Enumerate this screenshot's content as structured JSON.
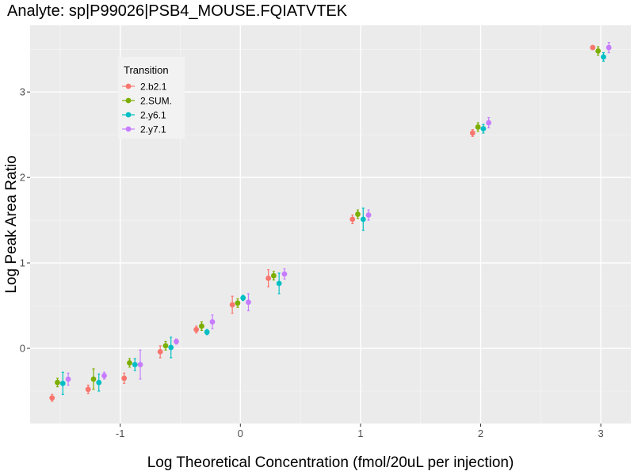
{
  "chart_data": {
    "type": "scatter",
    "title": "Analyte: sp|P99026|PSB4_MOUSE.FQIATVTEK",
    "xlabel": "Log Theoretical Concentration (fmol/20uL per injection)",
    "ylabel": "Log Peak Area Ratio",
    "xlim": [
      -1.75,
      3.25
    ],
    "ylim": [
      -0.88,
      3.78
    ],
    "x_ticks": [
      -1,
      0,
      1,
      2,
      3
    ],
    "x_tick_labels": [
      "-1",
      "0",
      "1",
      "2",
      "3"
    ],
    "y_ticks": [
      0,
      1,
      2,
      3
    ],
    "y_tick_labels": [
      "0",
      "1",
      "2",
      "3"
    ],
    "grid": true,
    "legend_title": "Transition",
    "legend_position": "top-left",
    "x": [
      -1.5,
      -1.2,
      -0.9,
      -0.6,
      -0.3,
      0,
      0.3,
      1,
      2,
      3
    ],
    "series": [
      {
        "name": "2.b2.1",
        "color": "#F8766D",
        "values": [
          -0.58,
          -0.48,
          -0.35,
          -0.04,
          0.22,
          0.51,
          0.82,
          1.51,
          2.52,
          3.52
        ],
        "error": [
          0.04,
          0.05,
          0.06,
          0.07,
          0.04,
          0.1,
          0.1,
          0.05,
          0.04,
          0.02
        ]
      },
      {
        "name": "2.SUM.",
        "color": "#7CAE00",
        "values": [
          -0.4,
          -0.36,
          -0.17,
          0.03,
          0.26,
          0.53,
          0.85,
          1.57,
          2.59,
          3.48
        ],
        "error": [
          0.05,
          0.12,
          0.05,
          0.05,
          0.05,
          0.05,
          0.05,
          0.05,
          0.05,
          0.05
        ]
      },
      {
        "name": "2.y6.1",
        "color": "#00BFC4",
        "values": [
          -0.41,
          -0.4,
          -0.19,
          0.01,
          0.19,
          0.59,
          0.76,
          1.51,
          2.57,
          3.41
        ],
        "error": [
          0.13,
          0.1,
          0.07,
          0.12,
          0.03,
          0.03,
          0.12,
          0.13,
          0.05,
          0.05
        ]
      },
      {
        "name": "2.y7.1",
        "color": "#C77CFF",
        "values": [
          -0.36,
          -0.32,
          -0.19,
          0.08,
          0.31,
          0.54,
          0.87,
          1.56,
          2.64,
          3.52
        ],
        "error": [
          0.07,
          0.04,
          0.17,
          0.03,
          0.08,
          0.1,
          0.06,
          0.06,
          0.06,
          0.06
        ]
      }
    ]
  }
}
